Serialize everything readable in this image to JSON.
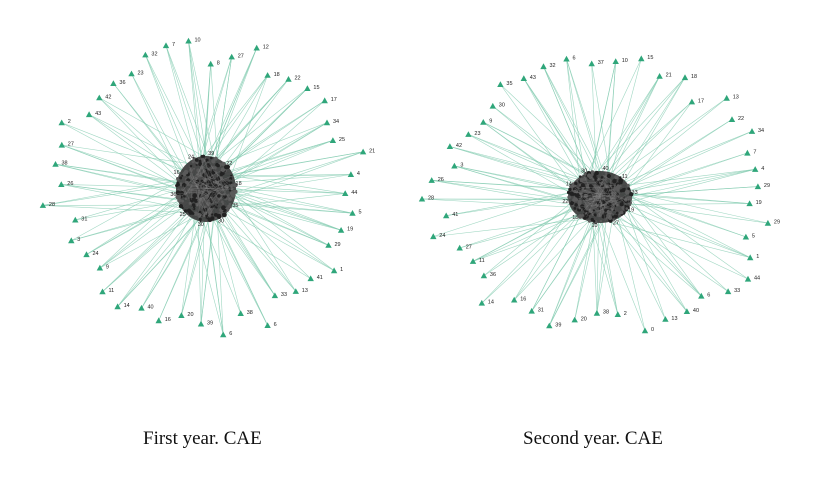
{
  "figure": {
    "captions": [
      "First year. CAE",
      "Second year. CAE"
    ],
    "colors": {
      "edge": "#7fc9ad",
      "peripheral_node": "#2fa67a",
      "hub": "#3a3a3a",
      "label": "#222222"
    },
    "networks": [
      {
        "caption": "First year. CAE",
        "peripheral_nodes": [
          "7",
          "10",
          "8",
          "27",
          "12",
          "18",
          "22",
          "15",
          "17",
          "34",
          "25",
          "21",
          "4",
          "44",
          "5",
          "19",
          "29",
          "1",
          "41",
          "13",
          "33",
          "6",
          "38",
          "6",
          "39",
          "20",
          "16",
          "40",
          "14",
          "11",
          "9",
          "24",
          "3",
          "31",
          "28",
          "26",
          "38",
          "27",
          "2",
          "43",
          "42",
          "36",
          "23",
          "32"
        ],
        "hub_labels": [
          "30",
          "25",
          "36",
          "16",
          "24",
          "39",
          "22",
          "18",
          "35",
          "30"
        ]
      },
      {
        "caption": "Second year. CAE",
        "peripheral_nodes": [
          "6",
          "37",
          "10",
          "15",
          "21",
          "18",
          "17",
          "13",
          "22",
          "34",
          "7",
          "4",
          "29",
          "19",
          "29",
          "5",
          "1",
          "44",
          "33",
          "6",
          "40",
          "13",
          "0",
          "2",
          "38",
          "20",
          "39",
          "31",
          "16",
          "14",
          "36",
          "11",
          "27",
          "24",
          "41",
          "28",
          "26",
          "3",
          "42",
          "23",
          "9",
          "30",
          "35",
          "43",
          "32"
        ],
        "hub_labels": [
          "10",
          "18",
          "22",
          "14",
          "30",
          "40",
          "11",
          "33",
          "19",
          "27"
        ]
      }
    ]
  }
}
